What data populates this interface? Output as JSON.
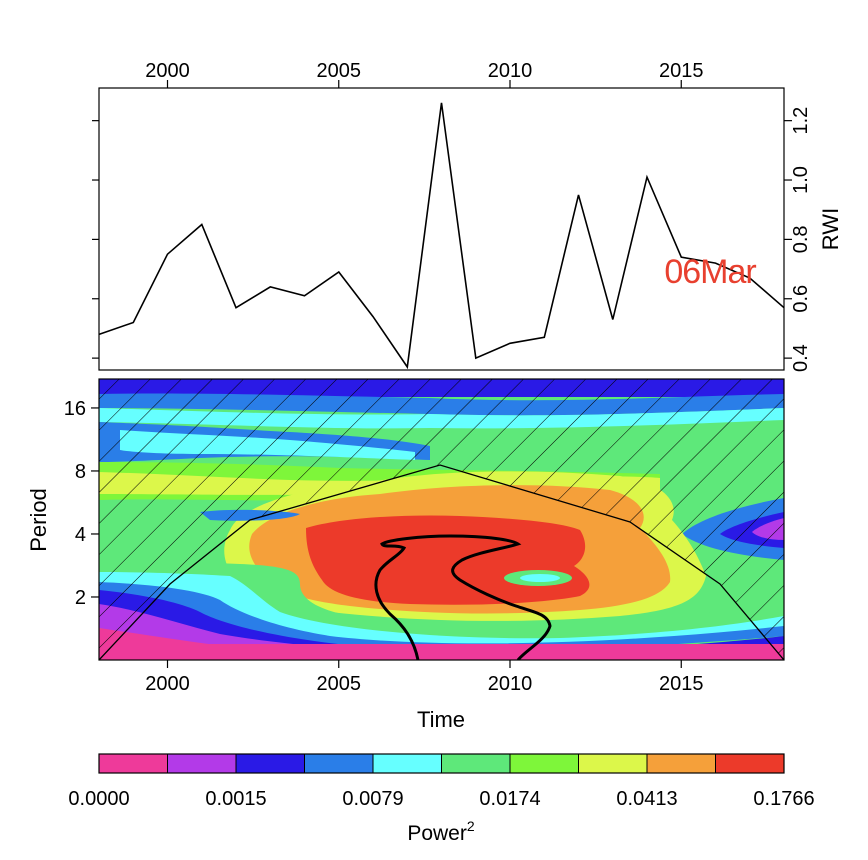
{
  "chart_data": [
    {
      "type": "line",
      "x_ticks": [
        "2000",
        "2005",
        "2010",
        "2015"
      ],
      "y_ticks": [
        "0.4",
        "0.6",
        "0.8",
        "1.0",
        "1.2"
      ],
      "ylabel": "RWI",
      "annotation": "06Mar",
      "annotation_color": "#e8402f",
      "xlim": [
        1998,
        2018
      ],
      "ylim": [
        0.36,
        1.31
      ],
      "x": [
        1998,
        1999,
        2000,
        2001,
        2002,
        2003,
        2004,
        2005,
        2006,
        2007,
        2008,
        2009,
        2010,
        2011,
        2012,
        2013,
        2014,
        2015,
        2016,
        2017,
        2018
      ],
      "values": [
        0.48,
        0.52,
        0.75,
        0.85,
        0.57,
        0.64,
        0.61,
        0.69,
        0.54,
        0.37,
        1.26,
        0.4,
        0.45,
        0.47,
        0.95,
        0.53,
        1.01,
        0.74,
        0.72,
        0.67,
        0.57
      ]
    },
    {
      "type": "heatmap",
      "x_ticks": [
        "2000",
        "2005",
        "2010",
        "2015"
      ],
      "y_ticks": [
        "2",
        "4",
        "8",
        "16"
      ],
      "xlabel": "Time",
      "ylabel": "Period",
      "xlim": [
        1998,
        2018
      ],
      "period_range": [
        1,
        22
      ],
      "cone_of_influence": true,
      "significance_contour": true
    },
    {
      "type": "colorbar",
      "tick_labels": [
        "0.0000",
        "0.0015",
        "0.0079",
        "0.0174",
        "0.0413",
        "0.1766"
      ],
      "title": "Power",
      "title_superscript": "2",
      "colors": [
        "#ee3a9a",
        "#b33ae8",
        "#2a1ae6",
        "#2a7ee8",
        "#66ffff",
        "#5ee87a",
        "#7ef63a",
        "#dcf74a",
        "#f5a03a",
        "#ec3a2a"
      ]
    }
  ]
}
